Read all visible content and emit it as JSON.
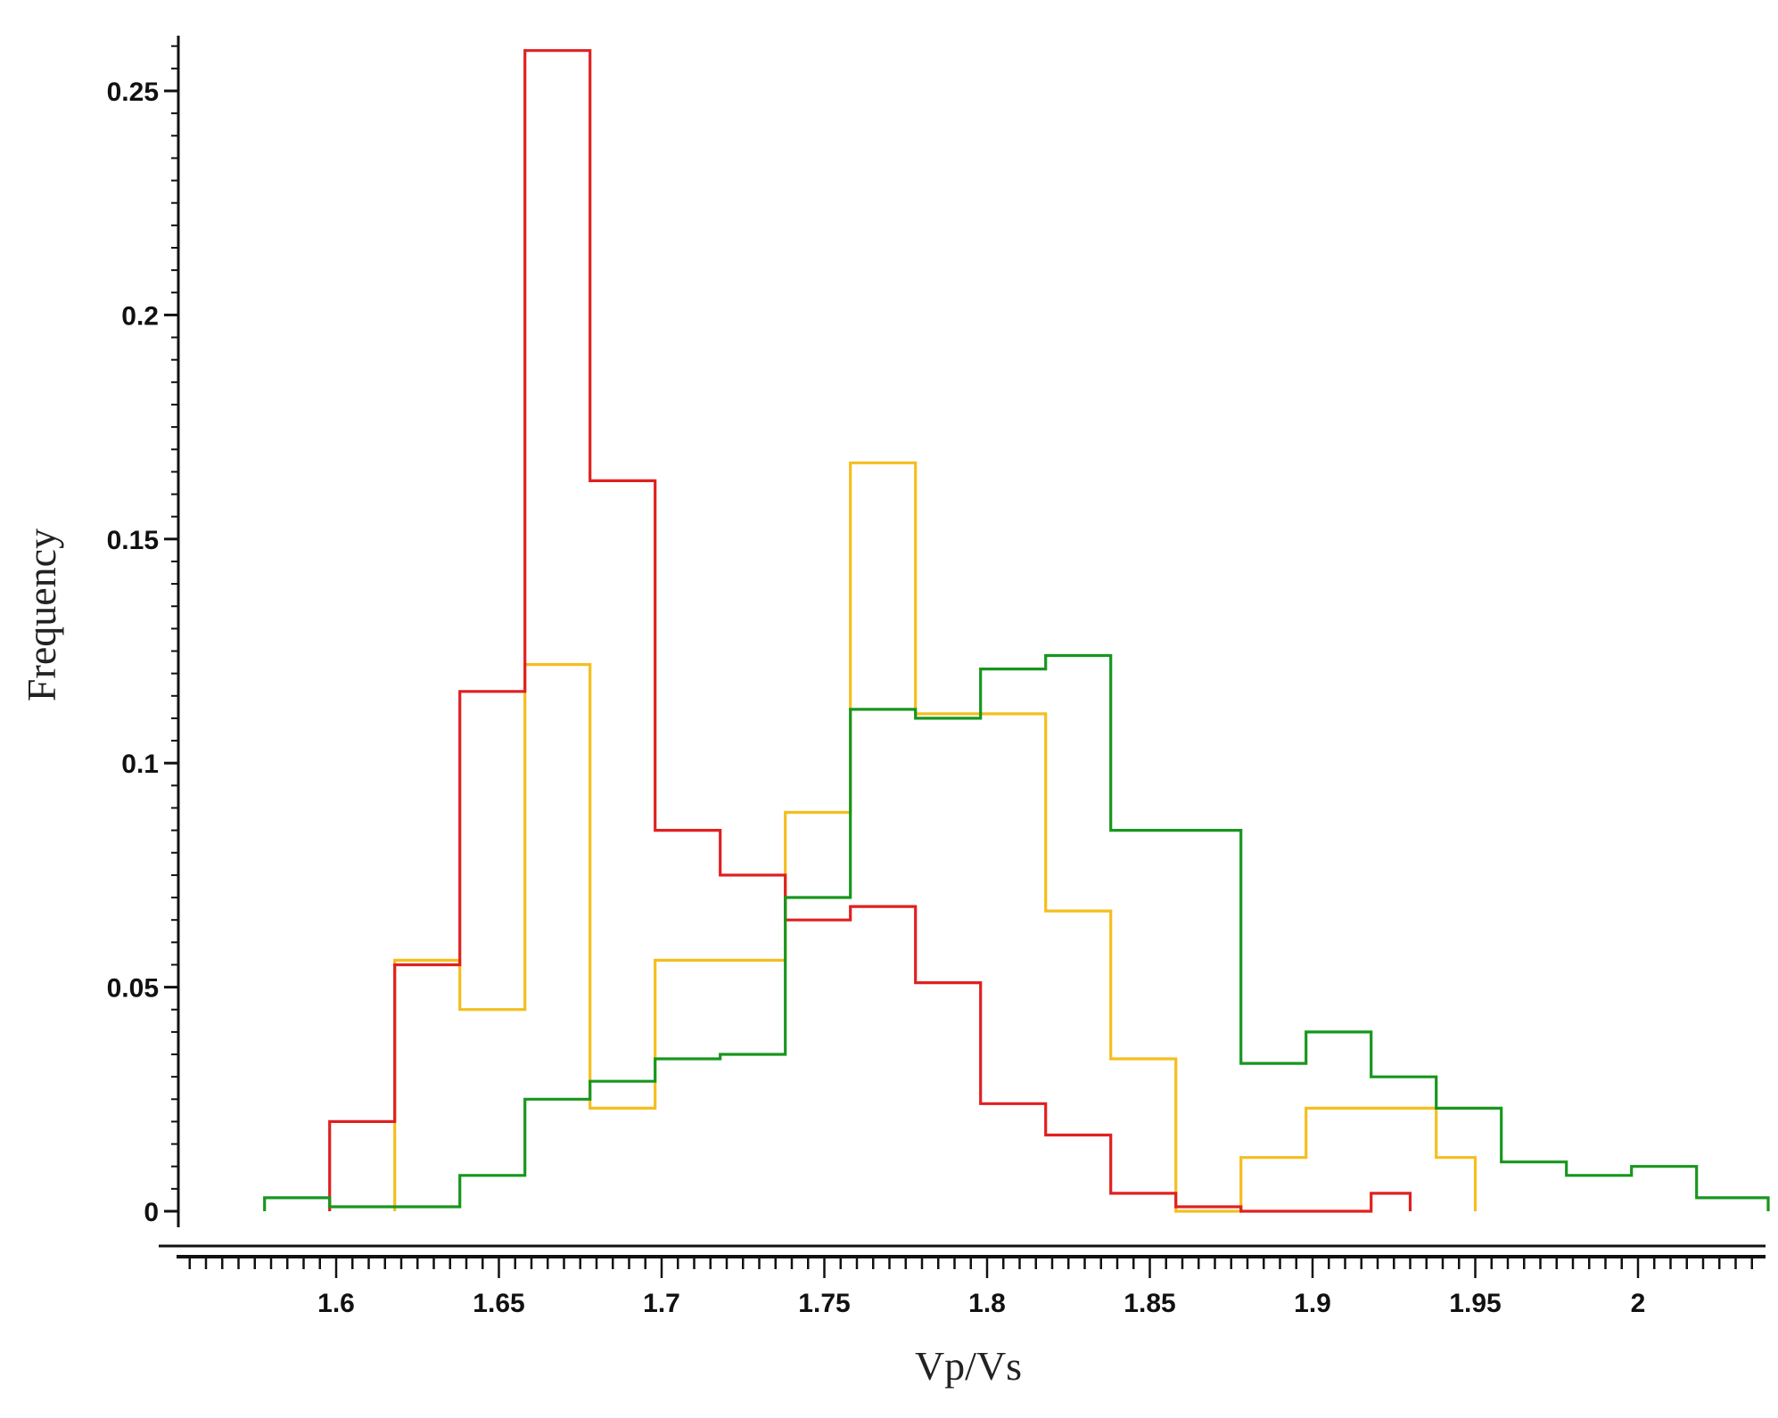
{
  "chart_data": {
    "type": "histogram-step",
    "xlabel": "Vp/Vs",
    "ylabel": "Frequency",
    "xlim": [
      1.55,
      2.04
    ],
    "ylim": [
      -0.007,
      0.26
    ],
    "x_ticks": [
      "1.6",
      "1.65",
      "1.7",
      "1.75",
      "1.8",
      "1.85",
      "1.9",
      "1.95",
      "2"
    ],
    "y_ticks": [
      "0",
      "0.05",
      "0.1",
      "0.15",
      "0.2",
      "0.25"
    ],
    "grid": false,
    "legend": "none",
    "series": [
      {
        "color": "#e02020",
        "edges": [
          1.598,
          1.618,
          1.638,
          1.658,
          1.678,
          1.698,
          1.718,
          1.738,
          1.758,
          1.778,
          1.798,
          1.818,
          1.838,
          1.858,
          1.878,
          1.898,
          1.918,
          1.93
        ],
        "values": [
          0.02,
          0.055,
          0.116,
          0.259,
          0.163,
          0.085,
          0.075,
          0.065,
          0.068,
          0.051,
          0.024,
          0.017,
          0.004,
          0.001,
          0.0,
          0.0,
          0.004
        ]
      },
      {
        "color": "#f5be1e",
        "edges": [
          1.618,
          1.638,
          1.658,
          1.678,
          1.698,
          1.718,
          1.738,
          1.758,
          1.778,
          1.798,
          1.818,
          1.838,
          1.858,
          1.878,
          1.898,
          1.918,
          1.938,
          1.95
        ],
        "values": [
          0.056,
          0.045,
          0.122,
          0.023,
          0.056,
          0.056,
          0.089,
          0.167,
          0.111,
          0.111,
          0.067,
          0.034,
          0.0,
          0.012,
          0.023,
          0.023,
          0.012
        ]
      },
      {
        "color": "#17961e",
        "edges": [
          1.578,
          1.598,
          1.618,
          1.638,
          1.658,
          1.678,
          1.698,
          1.718,
          1.738,
          1.758,
          1.778,
          1.798,
          1.818,
          1.838,
          1.858,
          1.878,
          1.898,
          1.918,
          1.938,
          1.958,
          1.978,
          1.998,
          2.018,
          2.04
        ],
        "values": [
          0.003,
          0.001,
          0.001,
          0.008,
          0.025,
          0.029,
          0.034,
          0.035,
          0.07,
          0.112,
          0.11,
          0.121,
          0.124,
          0.085,
          0.085,
          0.033,
          0.04,
          0.03,
          0.023,
          0.011,
          0.008,
          0.01,
          0.003
        ]
      }
    ]
  }
}
